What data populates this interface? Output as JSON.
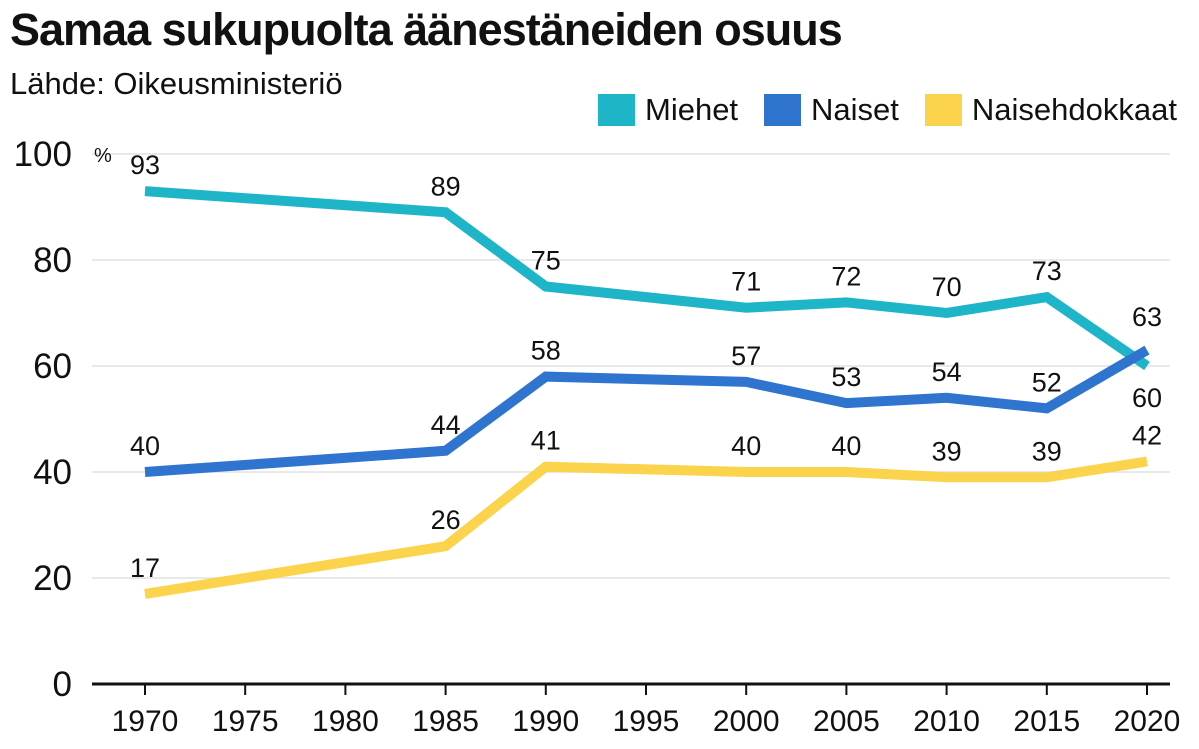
{
  "chart_data": {
    "type": "line",
    "title": "Samaa sukupuolta äänestäneiden osuus",
    "subtitle": "Lähde: Oikeusministeriö",
    "ylabel": "%",
    "xlabel": "",
    "x": [
      1970,
      1985,
      1990,
      2000,
      2005,
      2010,
      2015,
      2020
    ],
    "x_ticks": [
      "1970",
      "1975",
      "1980",
      "1985",
      "1990",
      "1995",
      "2000",
      "2005",
      "2010",
      "2015",
      "2020"
    ],
    "xlim": [
      1970,
      2020
    ],
    "y_ticks": [
      "0",
      "20",
      "40",
      "60",
      "80",
      "100"
    ],
    "ylim": [
      0,
      100
    ],
    "grid": "horizontal",
    "legend_position": "top-right",
    "series": [
      {
        "name": "Miehet",
        "color": "#1fb5c8",
        "values": [
          93,
          89,
          75,
          71,
          72,
          70,
          73,
          60
        ]
      },
      {
        "name": "Naiset",
        "color": "#2f74cf",
        "values": [
          40,
          44,
          58,
          57,
          53,
          54,
          52,
          63
        ]
      },
      {
        "name": "Naisehdokkaat",
        "color": "#fbd34d",
        "values": [
          17,
          26,
          41,
          40,
          40,
          39,
          39,
          42
        ]
      }
    ]
  }
}
